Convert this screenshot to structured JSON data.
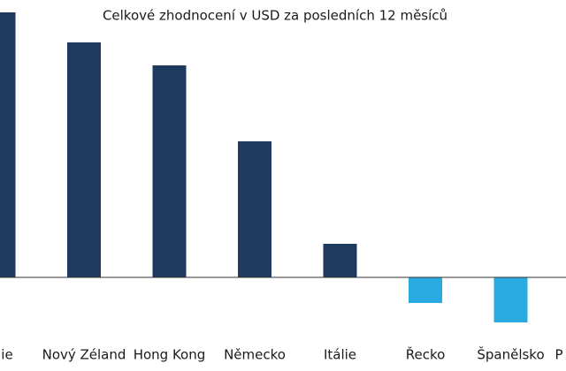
{
  "chart_data": {
    "type": "bar",
    "title": "Celkové zhodnocení v USD za posledních 12 měsíců",
    "categories": [
      "ie",
      "Nový Zéland",
      "Hong Kong",
      "Německo",
      "Itálie",
      "Řecko",
      "Španělsko",
      "P"
    ],
    "values": [
      30,
      26.6,
      24,
      15.4,
      3.8,
      -2.9,
      -5.1,
      null
    ],
    "colors": [
      "#1f3a5f",
      "#1f3a5f",
      "#1f3a5f",
      "#1f3a5f",
      "#1f3a5f",
      "#29abe2",
      "#29abe2",
      "#29abe2"
    ],
    "ylim": [
      -10.6,
      31.4
    ]
  }
}
